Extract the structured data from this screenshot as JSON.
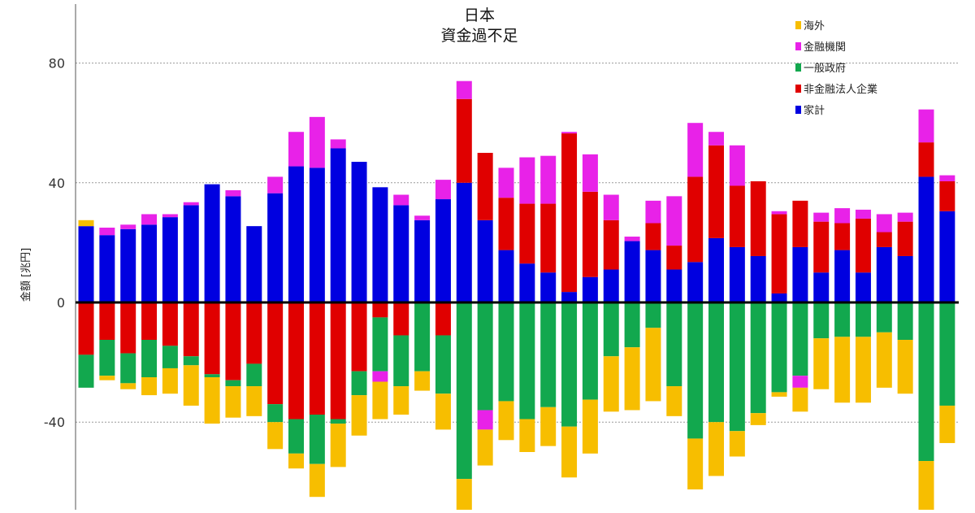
{
  "chart_data": {
    "type": "bar",
    "stacked": true,
    "title_lines": [
      "日本",
      "資金過不足"
    ],
    "xlabel": "",
    "ylabel": "金額 [兆円]",
    "ylim": [
      -70,
      100
    ],
    "yticks": [
      -40,
      0,
      40,
      80
    ],
    "ytick_labels": [
      "-40",
      "0",
      "40",
      "80"
    ],
    "grid": "horizontal-dotted",
    "legend_position": "top-right",
    "series": [
      {
        "name": "家計",
        "color": "#0000e0",
        "values": [
          25.5,
          22.5,
          24.5,
          26,
          28.5,
          32.5,
          39.5,
          35.5,
          25.5,
          36.5,
          45.5,
          45,
          51.5,
          47,
          38.5,
          32.5,
          27.5,
          34.5,
          40,
          27.5,
          17.5,
          13,
          10,
          3.5,
          8.5,
          11,
          20.5,
          17.5,
          11,
          13.5,
          21.5,
          18.5,
          15.5,
          3,
          18.5,
          10,
          17.5,
          10,
          18.5,
          15.5,
          42,
          30.5
        ]
      },
      {
        "name": "非金融法人企業",
        "color": "#e00000",
        "values": [
          -17.5,
          -12.5,
          -17,
          -12.5,
          -14.5,
          -18,
          -24,
          -26,
          -20.5,
          -34,
          -39,
          -37.5,
          -39,
          -23,
          -5,
          -11,
          0,
          -11,
          28,
          22.5,
          17.5,
          20,
          23,
          53,
          28.5,
          16.5,
          0,
          9,
          8,
          28.5,
          31,
          20.5,
          25,
          26.5,
          15.5,
          17,
          9,
          18,
          5,
          11.5,
          11.5,
          10
        ]
      },
      {
        "name": "一般政府",
        "color": "#12a84e",
        "values": [
          -11,
          -12,
          -10,
          -12.5,
          -7.5,
          -3,
          -1,
          -2,
          -7.5,
          -6,
          -11.5,
          -16.5,
          -1.5,
          -8,
          -18,
          -17,
          -23,
          -19.5,
          -59,
          -36,
          -33,
          -39,
          -35,
          -41.5,
          -32.5,
          -18,
          -15,
          -8.5,
          -28,
          -45.5,
          -40,
          -43,
          -37,
          -30,
          -24.5,
          -12,
          -11.5,
          -11.5,
          -10,
          -12.5,
          -53,
          -34.5
        ]
      },
      {
        "name": "金融機関",
        "color": "#e822e8",
        "values": [
          0,
          2.5,
          1.5,
          3.5,
          1,
          1,
          0,
          2,
          0,
          5.5,
          11.5,
          17,
          3,
          0,
          -3.5,
          3.5,
          1.5,
          6.5,
          6,
          -6.5,
          10,
          15.5,
          16,
          0.5,
          12.5,
          8.5,
          1.5,
          7.5,
          16.5,
          18,
          4.5,
          13.5,
          0,
          1,
          -4,
          3,
          5,
          3,
          6,
          3,
          11,
          2
        ]
      },
      {
        "name": "海外",
        "color": "#f7be00",
        "values": [
          2,
          -1.5,
          -2,
          -6,
          -8.5,
          -13.5,
          -15.5,
          -10.5,
          -10,
          -9,
          -5,
          -11,
          -14.5,
          -13.5,
          -12.5,
          -9.5,
          -6.5,
          -12,
          -12.5,
          -12,
          -13,
          -11,
          -13,
          -17,
          -18,
          -18.5,
          -21,
          -24.5,
          -10,
          -17,
          -18,
          -8.5,
          -4,
          -1.5,
          -8,
          -17,
          -22,
          -22,
          -18.5,
          -18,
          -16.5,
          -12.5
        ]
      }
    ]
  }
}
